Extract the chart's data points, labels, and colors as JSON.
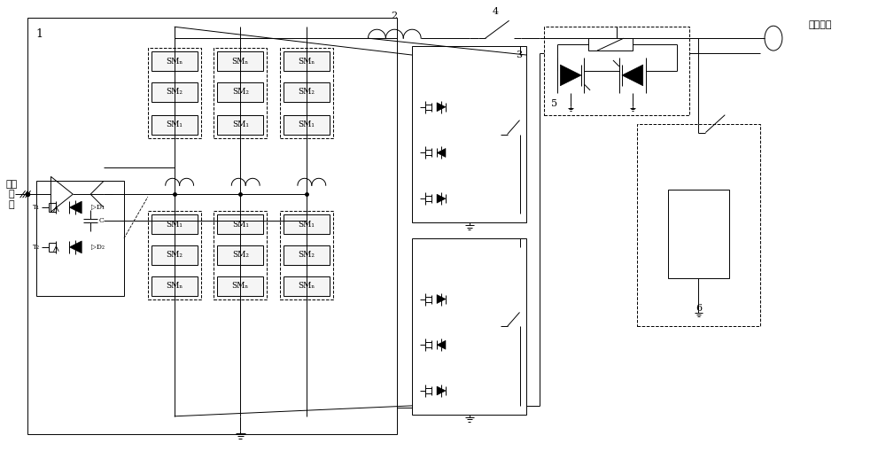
{
  "bg_color": "#ffffff",
  "line_color": "#000000",
  "ac_label": "交流\n电\n网",
  "dc_label": "直流线路",
  "label1": "1",
  "label2": "2",
  "label3": "3",
  "label4": "4",
  "label5": "5",
  "label6": "6",
  "sm_top": [
    "SMₙ",
    "SM₂",
    "SM₁"
  ],
  "sm_bot": [
    "SM₁",
    "SM₂",
    "SMₙ"
  ],
  "T1": "T₁",
  "T2": "T₂",
  "D1": "▷D₁",
  "D2": "▷D₂",
  "C": "C"
}
